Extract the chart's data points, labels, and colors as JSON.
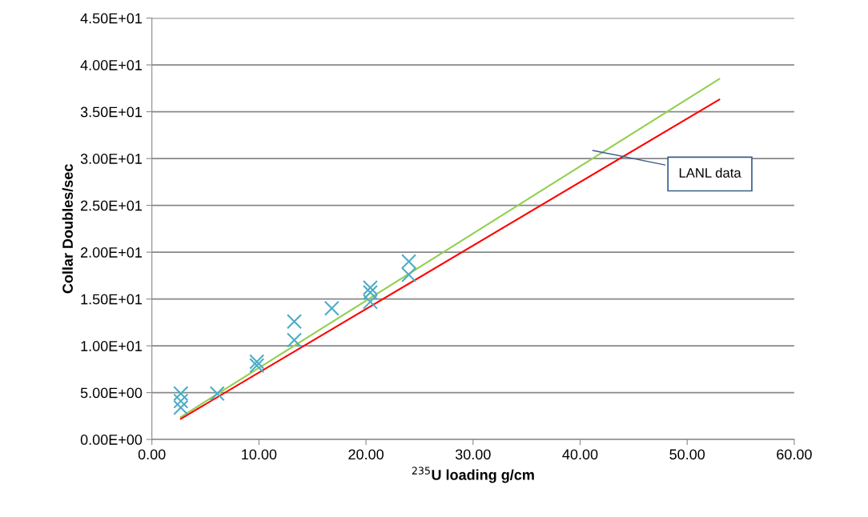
{
  "chart_data": {
    "type": "scatter",
    "xlabel": "$^{235}$U loading g/cm",
    "ylabel": "Collar Doubles/sec",
    "xlim": [
      0,
      60
    ],
    "ylim": [
      0,
      45
    ],
    "xticks": [
      {
        "value": 0,
        "label": "0.00"
      },
      {
        "value": 10,
        "label": "10.00"
      },
      {
        "value": 20,
        "label": "20.00"
      },
      {
        "value": 30,
        "label": "30.00"
      },
      {
        "value": 40,
        "label": "40.00"
      },
      {
        "value": 50,
        "label": "50.00"
      },
      {
        "value": 60,
        "label": "60.00"
      }
    ],
    "yticks": [
      {
        "value": 0,
        "label": "0.00E+00"
      },
      {
        "value": 5,
        "label": "5.00E+00"
      },
      {
        "value": 10,
        "label": "1.00E+01"
      },
      {
        "value": 15,
        "label": "1.50E+01"
      },
      {
        "value": 20,
        "label": "2.00E+01"
      },
      {
        "value": 25,
        "label": "2.50E+01"
      },
      {
        "value": 30,
        "label": "3.00E+01"
      },
      {
        "value": 35,
        "label": "3.50E+01"
      },
      {
        "value": 40,
        "label": "4.00E+01"
      },
      {
        "value": 45,
        "label": "4.50E+01"
      }
    ],
    "grid": "y",
    "legend": false,
    "series": [
      {
        "marker": "cross",
        "color": "#4bacc6",
        "x": [
          2.7,
          2.7,
          2.7,
          6.1,
          9.8,
          9.8,
          13.3,
          13.3,
          16.8,
          20.4,
          20.4,
          20.4,
          24.0,
          24.0
        ],
        "values": [
          4.9,
          4.1,
          3.4,
          4.9,
          8.3,
          7.9,
          12.6,
          10.6,
          14.0,
          16.2,
          15.7,
          14.7,
          19.0,
          17.6
        ]
      },
      {
        "type": "line",
        "marker": "none",
        "color": "#92d050",
        "x": [
          2.7,
          53.0
        ],
        "values": [
          2.4,
          38.5
        ]
      },
      {
        "type": "line",
        "marker": "none",
        "color": "#ff0000",
        "x": [
          2.7,
          53.0
        ],
        "values": [
          2.2,
          36.3
        ]
      }
    ],
    "annotations": [
      "LANL data"
    ]
  }
}
